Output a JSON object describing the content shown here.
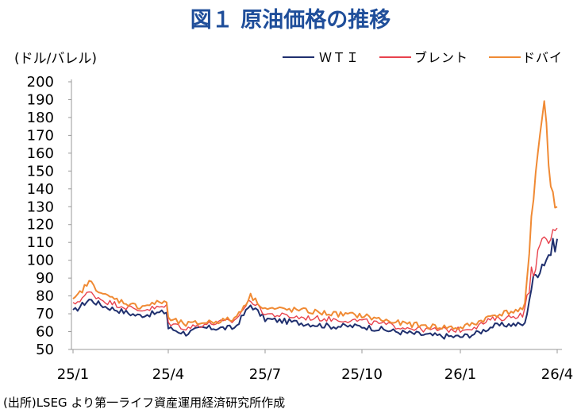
{
  "chart_data": {
    "type": "line",
    "title": "図１ 原油価格の推移",
    "ylabel": "(ドル/バレル)",
    "source": "(出所)LSEG より第一ライフ資産運用経済研究所作成",
    "ylim": [
      50,
      200
    ],
    "yticks": [
      "50",
      "60",
      "70",
      "80",
      "90",
      "100",
      "110",
      "120",
      "130",
      "140",
      "150",
      "160",
      "170",
      "180",
      "190",
      "200"
    ],
    "xticks": [
      "25/1",
      "25/4",
      "25/7",
      "25/10",
      "26/1",
      "26/4"
    ],
    "legend_position": "top-right",
    "grid": false,
    "series": [
      {
        "name": "ＷＴＩ",
        "color": "#1f2f6e",
        "x": [
          "25/1",
          "25/1.5",
          "25/2",
          "25/3",
          "25/3.9",
          "25/4",
          "25/4.5",
          "25/5",
          "25/6",
          "25/6.5",
          "25/7",
          "25/8",
          "25/9",
          "25/10",
          "25/11",
          "25/12",
          "26/1",
          "26/1.5",
          "26/2",
          "26/2.5",
          "26/3",
          "26/3.2",
          "26/3.4",
          "26/3.6",
          "26/3.8",
          "26/4"
        ],
        "values": [
          71,
          78,
          74,
          69,
          71,
          62,
          59,
          62,
          62,
          75,
          67,
          65,
          63,
          63,
          60,
          58,
          57,
          59,
          63,
          64,
          64,
          85,
          95,
          100,
          105,
          112
        ]
      },
      {
        "name": "ブレント",
        "color": "#e8424d",
        "x": [
          "25/1",
          "25/1.5",
          "25/2",
          "25/3",
          "25/3.9",
          "25/4",
          "25/4.5",
          "25/5",
          "25/6",
          "25/6.5",
          "25/7",
          "25/8",
          "25/9",
          "25/10",
          "25/11",
          "25/12",
          "26/1",
          "26/1.5",
          "26/2",
          "26/2.5",
          "26/3",
          "26/3.2",
          "26/3.4",
          "26/3.6",
          "26/3.8",
          "26/4"
        ],
        "values": [
          75,
          82,
          77,
          72,
          74,
          65,
          62,
          64,
          66,
          78,
          70,
          68,
          67,
          66,
          63,
          61,
          61,
          63,
          67,
          68,
          70,
          92,
          103,
          110,
          112,
          118
        ]
      },
      {
        "name": "ドバイ",
        "color": "#f08a34",
        "x": [
          "25/1",
          "25/1.5",
          "25/2",
          "25/3",
          "25/3.9",
          "25/4",
          "25/4.5",
          "25/5",
          "25/6",
          "25/6.5",
          "25/7",
          "25/8",
          "25/9",
          "25/10",
          "25/11",
          "25/12",
          "26/1",
          "26/1.5",
          "26/2",
          "26/2.5",
          "26/3",
          "26/3.2",
          "26/3.4",
          "26/3.6",
          "26/3.8",
          "26/4"
        ],
        "values": [
          77,
          88,
          80,
          74,
          77,
          67,
          64,
          65,
          67,
          80,
          73,
          72,
          70,
          69,
          65,
          63,
          62,
          65,
          69,
          71,
          72,
          125,
          160,
          190,
          140,
          130
        ]
      }
    ]
  }
}
